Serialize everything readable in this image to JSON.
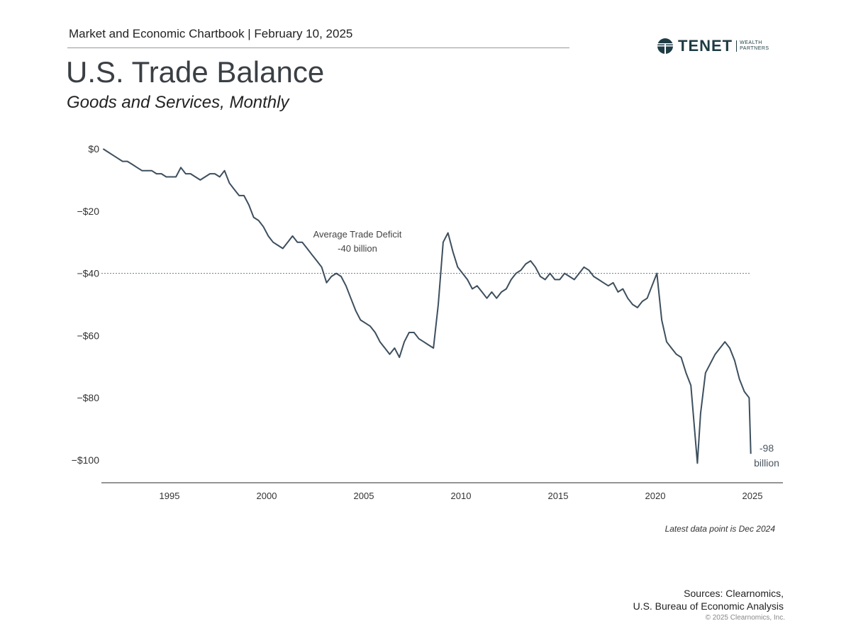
{
  "header": {
    "text": "Market and Economic Chartbook | February 10, 2025"
  },
  "logo": {
    "brand": "TENET",
    "sub_line1": "WEALTH",
    "sub_line2": "PARTNERS"
  },
  "footer": {
    "note": "Latest data point is Dec 2024",
    "sources_line1": "Sources: Clearnomics,",
    "sources_line2": "U.S. Bureau of Economic Analysis",
    "copyright": "© 2025 Clearnomics, Inc."
  },
  "colors": {
    "line": "#3d4f5e",
    "reference_line": "#6b7b88",
    "axis": "#555555",
    "logo": "#1f3b44"
  },
  "chart_data": {
    "type": "line",
    "title": "U.S. Trade Balance",
    "subtitle": "Goods and Services, Monthly",
    "xlabel": "",
    "ylabel": "",
    "x_ticks": [
      "1995",
      "2000",
      "2005",
      "2010",
      "2015",
      "2020",
      "2025"
    ],
    "y_ticks": [
      {
        "value": 0,
        "label": "$0"
      },
      {
        "value": -20,
        "label": "−$20"
      },
      {
        "value": -40,
        "label": "−$40"
      },
      {
        "value": -60,
        "label": "−$60"
      },
      {
        "value": -80,
        "label": "−$80"
      },
      {
        "value": -100,
        "label": "−$100"
      }
    ],
    "ylim": [
      -107,
      2
    ],
    "xlim": [
      "1991-08",
      "2025-12"
    ],
    "grid": false,
    "reference_line": {
      "value": -40,
      "style": "dotted",
      "label_line1": "Average Trade Deficit",
      "label_line2": "-40 billion"
    },
    "end_label": {
      "line1": "-98",
      "line2": "billion"
    },
    "series": [
      {
        "points": [
          [
            "1991-08",
            0
          ],
          [
            "1991-11",
            -1
          ],
          [
            "1992-02",
            -2
          ],
          [
            "1992-05",
            -3
          ],
          [
            "1992-08",
            -4
          ],
          [
            "1992-11",
            -4
          ],
          [
            "1993-02",
            -5
          ],
          [
            "1993-05",
            -6
          ],
          [
            "1993-08",
            -7
          ],
          [
            "1993-11",
            -7
          ],
          [
            "1994-02",
            -7
          ],
          [
            "1994-05",
            -8
          ],
          [
            "1994-08",
            -8
          ],
          [
            "1994-11",
            -9
          ],
          [
            "1995-02",
            -9
          ],
          [
            "1995-05",
            -9
          ],
          [
            "1995-08",
            -6
          ],
          [
            "1995-11",
            -8
          ],
          [
            "1996-02",
            -8
          ],
          [
            "1996-05",
            -9
          ],
          [
            "1996-08",
            -10
          ],
          [
            "1996-11",
            -9
          ],
          [
            "1997-02",
            -8
          ],
          [
            "1997-05",
            -8
          ],
          [
            "1997-08",
            -9
          ],
          [
            "1997-11",
            -7
          ],
          [
            "1998-02",
            -11
          ],
          [
            "1998-05",
            -13
          ],
          [
            "1998-08",
            -15
          ],
          [
            "1998-11",
            -15
          ],
          [
            "1999-02",
            -18
          ],
          [
            "1999-05",
            -22
          ],
          [
            "1999-08",
            -23
          ],
          [
            "1999-11",
            -25
          ],
          [
            "2000-02",
            -28
          ],
          [
            "2000-05",
            -30
          ],
          [
            "2000-08",
            -31
          ],
          [
            "2000-11",
            -32
          ],
          [
            "2001-02",
            -30
          ],
          [
            "2001-05",
            -28
          ],
          [
            "2001-08",
            -30
          ],
          [
            "2001-11",
            -30
          ],
          [
            "2002-02",
            -32
          ],
          [
            "2002-05",
            -34
          ],
          [
            "2002-08",
            -36
          ],
          [
            "2002-11",
            -38
          ],
          [
            "2003-02",
            -43
          ],
          [
            "2003-05",
            -41
          ],
          [
            "2003-08",
            -40
          ],
          [
            "2003-11",
            -41
          ],
          [
            "2004-02",
            -44
          ],
          [
            "2004-05",
            -48
          ],
          [
            "2004-08",
            -52
          ],
          [
            "2004-11",
            -55
          ],
          [
            "2005-02",
            -56
          ],
          [
            "2005-05",
            -57
          ],
          [
            "2005-08",
            -59
          ],
          [
            "2005-11",
            -62
          ],
          [
            "2006-02",
            -64
          ],
          [
            "2006-05",
            -66
          ],
          [
            "2006-08",
            -64
          ],
          [
            "2006-11",
            -67
          ],
          [
            "2007-02",
            -62
          ],
          [
            "2007-05",
            -59
          ],
          [
            "2007-08",
            -59
          ],
          [
            "2007-11",
            -61
          ],
          [
            "2008-02",
            -62
          ],
          [
            "2008-05",
            -63
          ],
          [
            "2008-08",
            -64
          ],
          [
            "2008-11",
            -50
          ],
          [
            "2009-02",
            -30
          ],
          [
            "2009-05",
            -27
          ],
          [
            "2009-08",
            -33
          ],
          [
            "2009-11",
            -38
          ],
          [
            "2010-02",
            -40
          ],
          [
            "2010-05",
            -42
          ],
          [
            "2010-08",
            -45
          ],
          [
            "2010-11",
            -44
          ],
          [
            "2011-02",
            -46
          ],
          [
            "2011-05",
            -48
          ],
          [
            "2011-08",
            -46
          ],
          [
            "2011-11",
            -48
          ],
          [
            "2012-02",
            -46
          ],
          [
            "2012-05",
            -45
          ],
          [
            "2012-08",
            -42
          ],
          [
            "2012-11",
            -40
          ],
          [
            "2013-02",
            -39
          ],
          [
            "2013-05",
            -37
          ],
          [
            "2013-08",
            -36
          ],
          [
            "2013-11",
            -38
          ],
          [
            "2014-02",
            -41
          ],
          [
            "2014-05",
            -42
          ],
          [
            "2014-08",
            -40
          ],
          [
            "2014-11",
            -42
          ],
          [
            "2015-02",
            -42
          ],
          [
            "2015-05",
            -40
          ],
          [
            "2015-08",
            -41
          ],
          [
            "2015-11",
            -42
          ],
          [
            "2016-02",
            -40
          ],
          [
            "2016-05",
            -38
          ],
          [
            "2016-08",
            -39
          ],
          [
            "2016-11",
            -41
          ],
          [
            "2017-02",
            -42
          ],
          [
            "2017-05",
            -43
          ],
          [
            "2017-08",
            -44
          ],
          [
            "2017-11",
            -43
          ],
          [
            "2018-02",
            -46
          ],
          [
            "2018-05",
            -45
          ],
          [
            "2018-08",
            -48
          ],
          [
            "2018-11",
            -50
          ],
          [
            "2019-02",
            -51
          ],
          [
            "2019-05",
            -49
          ],
          [
            "2019-08",
            -48
          ],
          [
            "2019-11",
            -44
          ],
          [
            "2020-02",
            -40
          ],
          [
            "2020-05",
            -55
          ],
          [
            "2020-08",
            -62
          ],
          [
            "2020-11",
            -64
          ],
          [
            "2021-02",
            -66
          ],
          [
            "2021-05",
            -67
          ],
          [
            "2021-08",
            -72
          ],
          [
            "2021-11",
            -76
          ],
          [
            "2022-03",
            -101
          ],
          [
            "2022-05",
            -85
          ],
          [
            "2022-08",
            -72
          ],
          [
            "2022-11",
            -69
          ],
          [
            "2023-02",
            -66
          ],
          [
            "2023-05",
            -64
          ],
          [
            "2023-08",
            -62
          ],
          [
            "2023-11",
            -64
          ],
          [
            "2024-02",
            -68
          ],
          [
            "2024-05",
            -74
          ],
          [
            "2024-08",
            -78
          ],
          [
            "2024-11",
            -80
          ],
          [
            "2024-12",
            -98
          ]
        ]
      }
    ]
  }
}
